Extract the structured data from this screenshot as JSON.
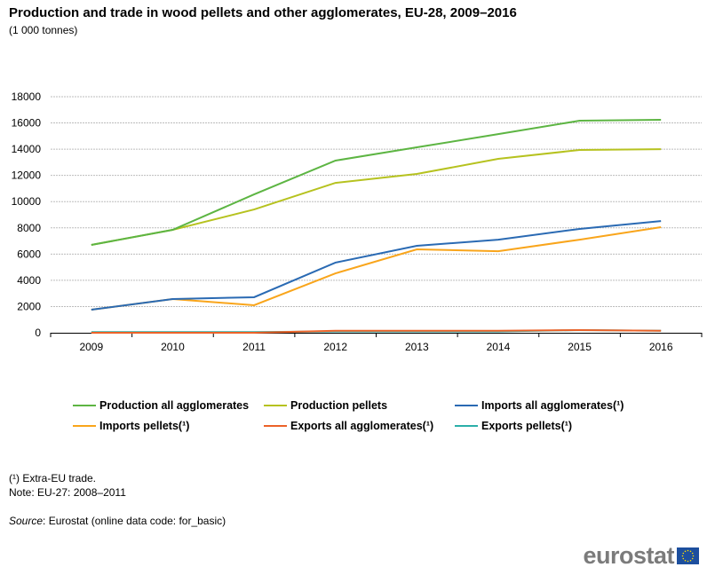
{
  "chart_data": {
    "type": "line",
    "title": "Production and trade in wood pellets and other agglomerates, EU-28, 2009–2016",
    "subtitle": "(1 000 tonnes)",
    "xlabel": "",
    "ylabel": "",
    "ylim": [
      0,
      18000
    ],
    "yticks": [
      0,
      2000,
      4000,
      6000,
      8000,
      10000,
      12000,
      14000,
      16000,
      18000
    ],
    "categories": [
      "2009",
      "2010",
      "2011",
      "2012",
      "2013",
      "2014",
      "2015",
      "2016"
    ],
    "grid": true,
    "legend_position": "bottom",
    "series": [
      {
        "name": "Production all agglomerates",
        "color": "#5db543",
        "values": [
          6700,
          7850,
          10550,
          13130,
          14140,
          15150,
          16170,
          16240
        ]
      },
      {
        "name": "Production pellets",
        "color": "#b6c21f",
        "values": [
          6700,
          7850,
          9400,
          11430,
          12110,
          13260,
          13940,
          14000
        ]
      },
      {
        "name": "Imports all agglomerates(¹)",
        "color": "#2a6ab3",
        "values": [
          1760,
          2570,
          2710,
          5350,
          6630,
          7100,
          7920,
          8520
        ]
      },
      {
        "name": "Imports pellets(¹)",
        "color": "#f9a51b",
        "values": [
          1760,
          2570,
          2100,
          4530,
          6360,
          6220,
          7100,
          8050
        ]
      },
      {
        "name": "Exports all agglomerates(¹)",
        "color": "#ec6228",
        "values": [
          0,
          0,
          0,
          150,
          150,
          150,
          200,
          150
        ]
      },
      {
        "name": "Exports pellets(¹)",
        "color": "#2bafa9",
        "values": [
          50,
          50,
          50,
          100,
          100,
          100,
          200,
          150
        ]
      }
    ]
  },
  "footnotes": {
    "note1": "(¹) Extra-EU trade.",
    "note2": "Note: EU-27: 2008–2011",
    "source_label": "Source",
    "source_text": ": Eurostat (online data code: for_basic)"
  },
  "logo": {
    "text": "eurostat"
  }
}
